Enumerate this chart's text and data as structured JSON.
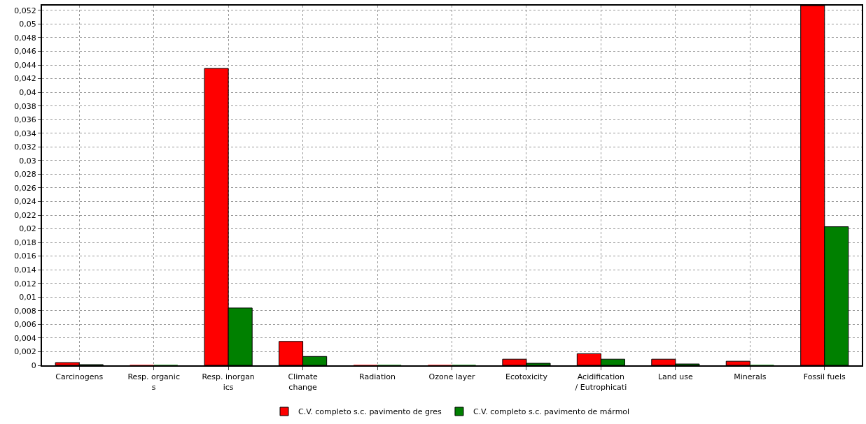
{
  "chart_data": {
    "type": "bar",
    "categories": [
      "Carcinogens",
      "Resp. organic\ns",
      "Resp. inorgan\nics",
      "Climate\nchange",
      "Radiation",
      "Ozone layer",
      "Ecotoxicity",
      "Acidification\n/ Eutrophicati",
      "Land use",
      "Minerals",
      "Fossil fuels"
    ],
    "series": [
      {
        "name": "C.V. completo s.c. pavimento de gres",
        "color": "#ff0000",
        "values": [
          0.0004,
          0,
          0.0435,
          0.0035,
          0,
          0,
          0.0009,
          0.0017,
          0.0009,
          0.0006,
          0.0527
        ]
      },
      {
        "name": "C.V. completo s.c. pavimento de mármol",
        "color": "#008000",
        "values": [
          0.0001,
          0,
          0.0084,
          0.0013,
          0,
          0,
          0.0003,
          0.0009,
          0.0002,
          0,
          0.0203
        ]
      }
    ],
    "ylim": [
      0,
      0.0527
    ],
    "yticks": [
      {
        "value": 0,
        "label": "0"
      },
      {
        "value": 0.002,
        "label": "0,002"
      },
      {
        "value": 0.004,
        "label": "0,004"
      },
      {
        "value": 0.006,
        "label": "0,006"
      },
      {
        "value": 0.008,
        "label": "0,008"
      },
      {
        "value": 0.01,
        "label": "0,01"
      },
      {
        "value": 0.012,
        "label": "0,012"
      },
      {
        "value": 0.014,
        "label": "0,014"
      },
      {
        "value": 0.016,
        "label": "0,016"
      },
      {
        "value": 0.018,
        "label": "0,018"
      },
      {
        "value": 0.02,
        "label": "0,02"
      },
      {
        "value": 0.022,
        "label": "0,022"
      },
      {
        "value": 0.024,
        "label": "0,024"
      },
      {
        "value": 0.026,
        "label": "0,026"
      },
      {
        "value": 0.028,
        "label": "0,028"
      },
      {
        "value": 0.03,
        "label": "0,03"
      },
      {
        "value": 0.032,
        "label": "0,032"
      },
      {
        "value": 0.034,
        "label": "0,034"
      },
      {
        "value": 0.036,
        "label": "0,036"
      },
      {
        "value": 0.038,
        "label": "0,038"
      },
      {
        "value": 0.04,
        "label": "0,04"
      },
      {
        "value": 0.042,
        "label": "0,042"
      },
      {
        "value": 0.044,
        "label": "0,044"
      },
      {
        "value": 0.046,
        "label": "0,046"
      },
      {
        "value": 0.048,
        "label": "0,048"
      },
      {
        "value": 0.05,
        "label": "0,05"
      },
      {
        "value": 0.052,
        "label": "0,052"
      }
    ],
    "grid": true,
    "legend": "bottom"
  }
}
